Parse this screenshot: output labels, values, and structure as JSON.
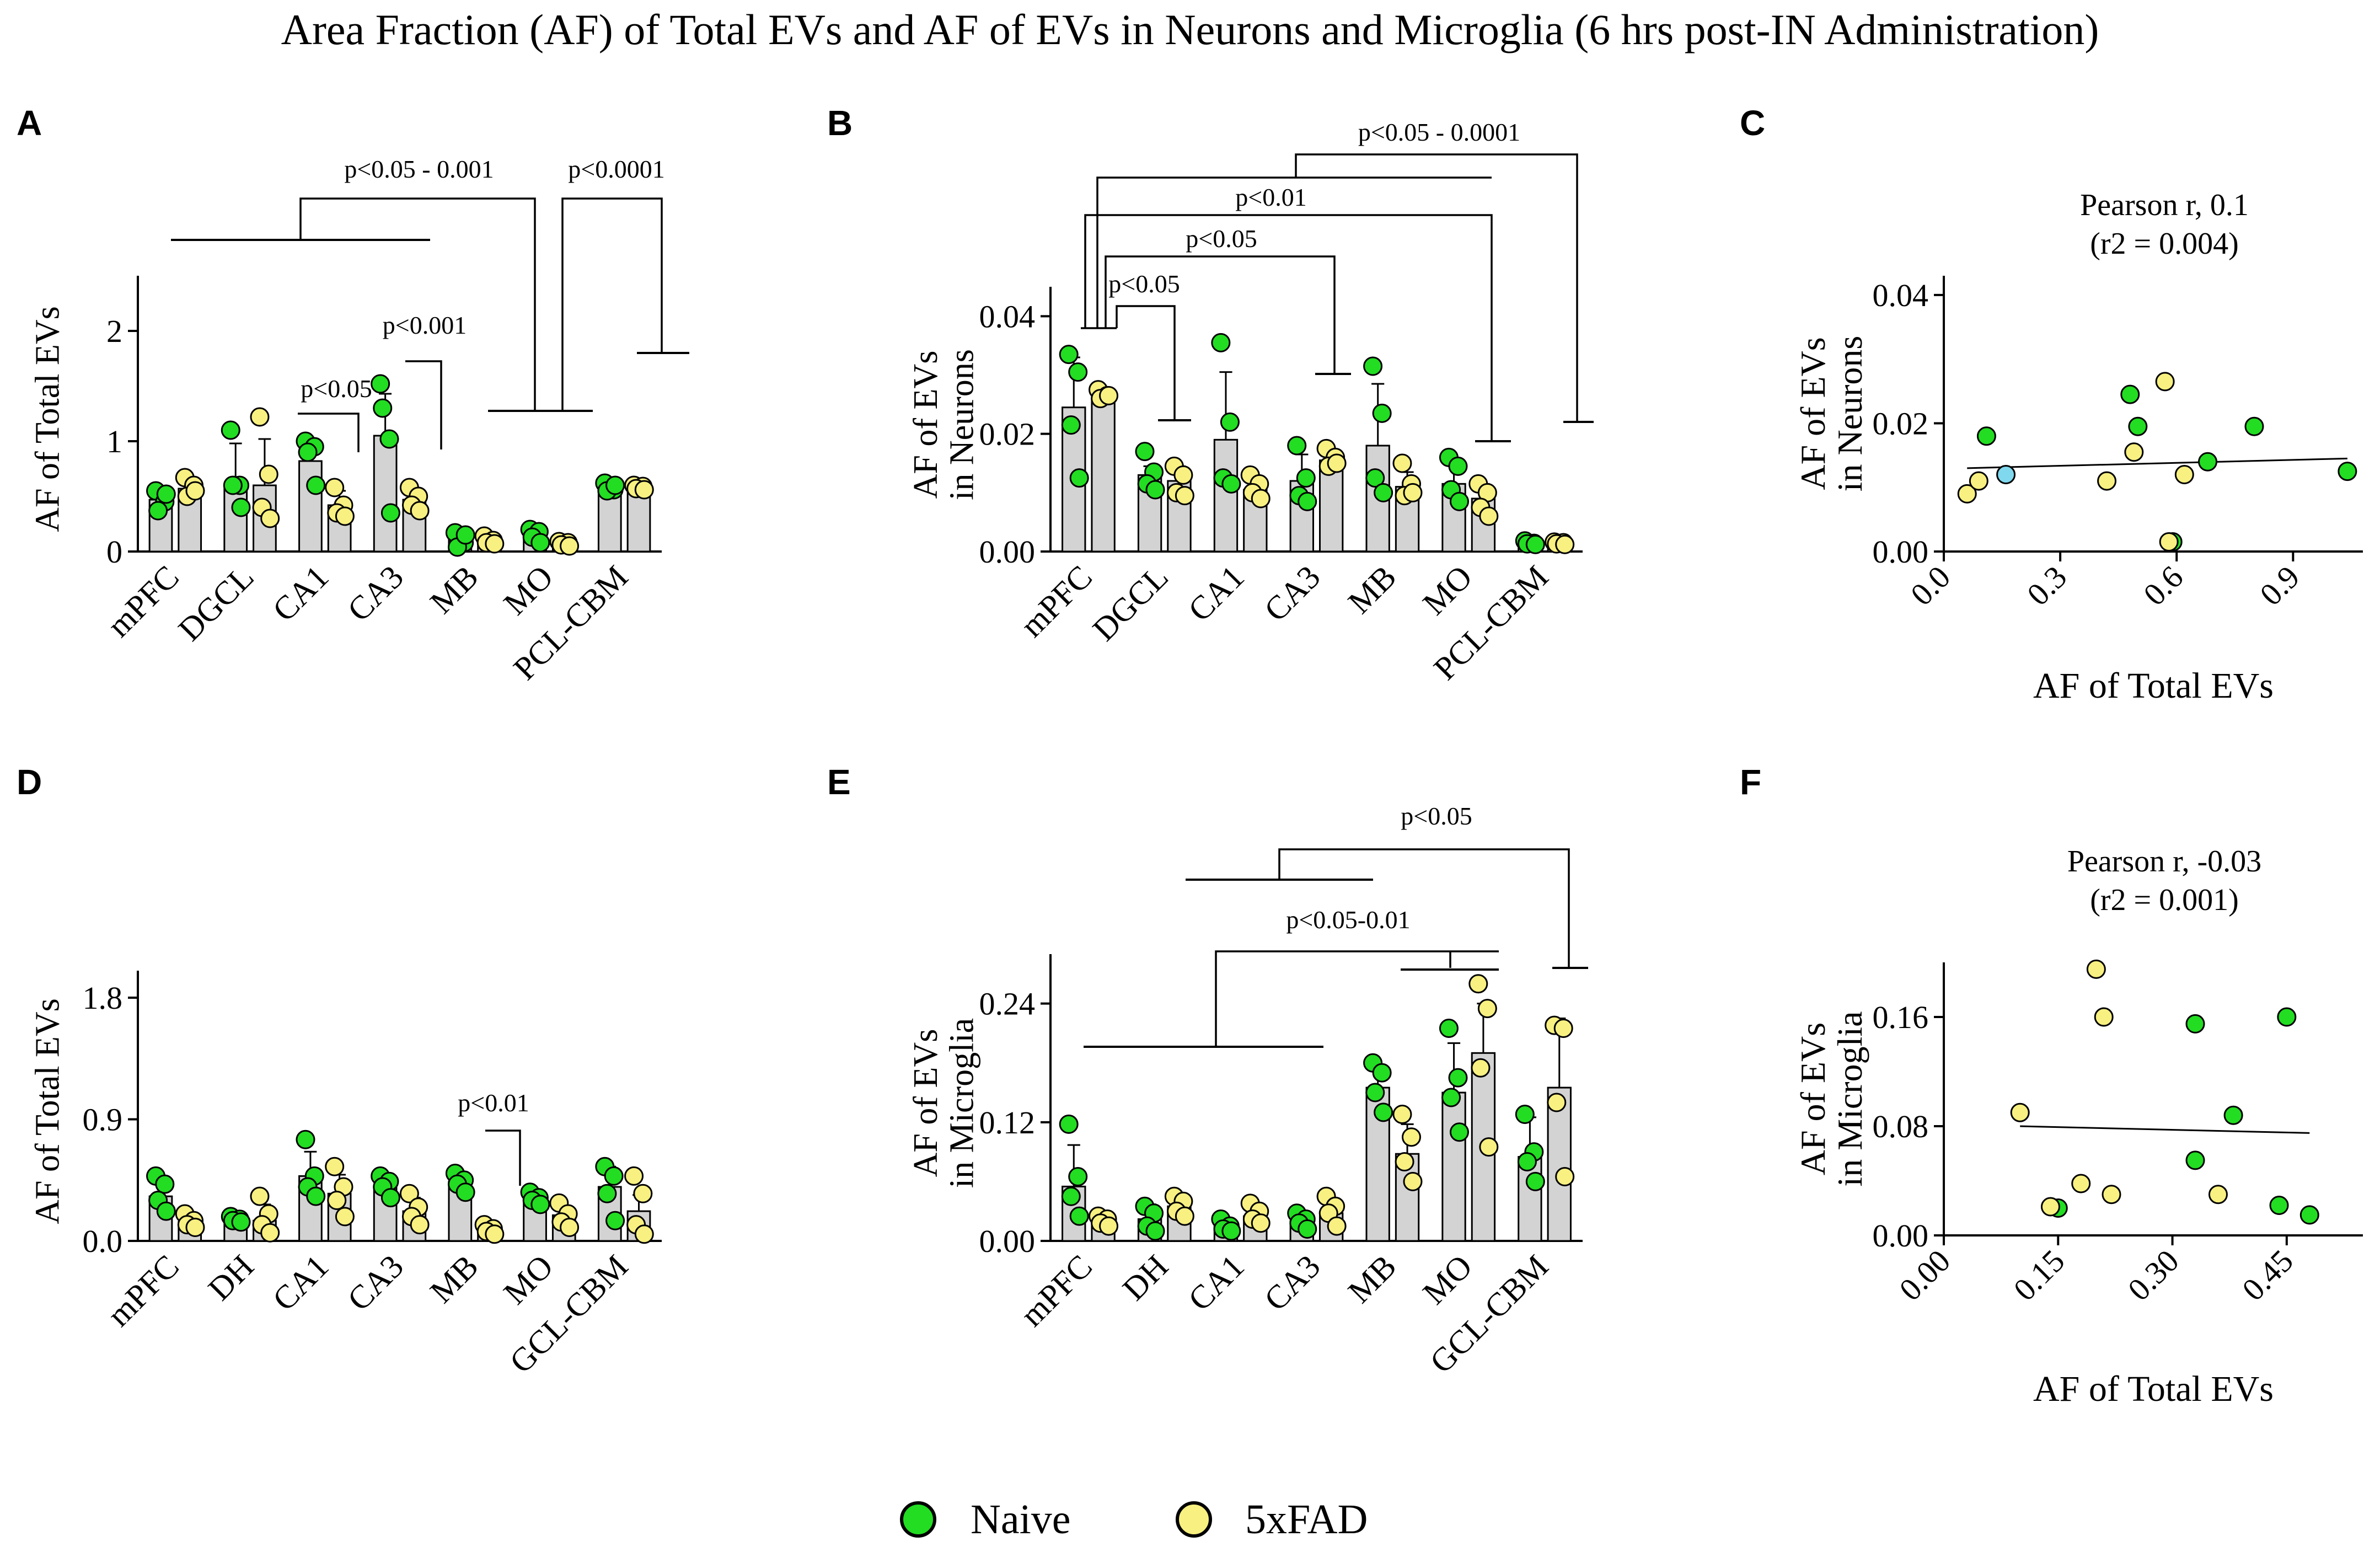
{
  "figure_title": "Area Fraction (AF) of Total EVs and AF of EVs in Neurons and Microglia (6 hrs post-IN Administration)",
  "colors": {
    "naive": "#22dd22",
    "fad": "#f8f080",
    "outlier": "#7fd8ee",
    "bar": "#d3d3d3",
    "ink": "#000000"
  },
  "legend": {
    "naive": "Naive",
    "fad": "5xFAD"
  },
  "chart_data": [
    {
      "panel": "A",
      "type": "bar",
      "title": "",
      "ylabel": "AF of Total EVs",
      "xlabel": "",
      "ylim": [
        0,
        2.5
      ],
      "yticks": [
        0,
        1,
        2
      ],
      "ytick_labels": [
        "0",
        "1",
        "2"
      ],
      "categories": [
        "mPFC",
        "DGCL",
        "CA1",
        "CA3",
        "MB",
        "MO",
        "PCL-CBM"
      ],
      "series": [
        {
          "name": "Naive",
          "values": [
            0.47,
            0.6,
            0.82,
            1.05,
            0.12,
            0.16,
            0.58
          ],
          "sd": [
            0.07,
            0.38,
            0.14,
            0.38,
            0.06,
            0.05,
            0.04
          ],
          "points": [
            [
              0.55,
              0.45,
              0.37,
              0.52
            ],
            [
              1.1,
              0.6,
              0.6,
              0.4
            ],
            [
              1.0,
              0.95,
              0.9,
              0.6
            ],
            [
              1.52,
              1.02,
              1.3,
              0.35
            ],
            [
              0.17,
              0.08,
              0.04,
              0.15
            ],
            [
              0.2,
              0.18,
              0.13,
              0.08
            ],
            [
              0.62,
              0.56,
              0.55,
              0.6
            ]
          ]
        },
        {
          "name": "5xFAD",
          "values": [
            0.57,
            0.6,
            0.42,
            0.47,
            0.1,
            0.08,
            0.58
          ],
          "sd": [
            0.08,
            0.42,
            0.13,
            0.1,
            0.03,
            0.02,
            0.02
          ],
          "points": [
            [
              0.67,
              0.6,
              0.5,
              0.55
            ],
            [
              1.22,
              0.7,
              0.4,
              0.3
            ],
            [
              0.58,
              0.42,
              0.35,
              0.32
            ],
            [
              0.58,
              0.5,
              0.42,
              0.37
            ],
            [
              0.14,
              0.1,
              0.08,
              0.07
            ],
            [
              0.09,
              0.08,
              0.06,
              0.05
            ],
            [
              0.6,
              0.59,
              0.57,
              0.56
            ]
          ]
        }
      ],
      "annotations": [
        {
          "label": "p<0.05",
          "type": "pair",
          "cats": [
            2,
            2
          ]
        },
        {
          "label": "p<0.001",
          "type": "pair",
          "cats": [
            3,
            3
          ]
        },
        {
          "label": "p<0.05 - 0.001",
          "type": "group-main",
          "text_at": 0.55
        },
        {
          "label": "p<0.0001",
          "type": "group-right"
        }
      ]
    },
    {
      "panel": "B",
      "type": "bar",
      "title": "",
      "ylabel": "AF of EVs\nin Neurons",
      "xlabel": "",
      "ylim": [
        0,
        0.045
      ],
      "yticks": [
        0,
        0.02,
        0.04
      ],
      "ytick_labels": [
        "0.00",
        "0.02",
        "0.04"
      ],
      "categories": [
        "mPFC",
        "DGCL",
        "CA1",
        "CA3",
        "MB",
        "MO",
        "PCL-CBM"
      ],
      "series": [
        {
          "name": "Naive",
          "values": [
            0.0245,
            0.013,
            0.019,
            0.012,
            0.018,
            0.0115,
            0.0015
          ],
          "sd": [
            0.0085,
            0.0015,
            0.0115,
            0.0045,
            0.0105,
            0.0035,
            0.0005
          ],
          "points": [
            [
              0.0335,
              0.0305,
              0.0215,
              0.0125
            ],
            [
              0.017,
              0.0135,
              0.0115,
              0.0105
            ],
            [
              0.0355,
              0.022,
              0.0125,
              0.0115
            ],
            [
              0.018,
              0.0125,
              0.0095,
              0.0085
            ],
            [
              0.0315,
              0.0235,
              0.0125,
              0.01
            ],
            [
              0.016,
              0.0145,
              0.0105,
              0.0085
            ],
            [
              0.0018,
              0.0014,
              0.0013,
              0.0012
            ]
          ]
        },
        {
          "name": "5xFAD",
          "values": [
            0.026,
            0.012,
            0.0105,
            0.0155,
            0.011,
            0.009,
            0.0014
          ],
          "sd": [
            0.0012,
            0.0025,
            0.0015,
            0.0015,
            0.0025,
            0.0025,
            0.0003
          ],
          "points": [
            [
              0.0275,
              0.0265,
              0.026,
              0.0265
            ],
            [
              0.0145,
              0.013,
              0.01,
              0.0095
            ],
            [
              0.013,
              0.0115,
              0.01,
              0.009
            ],
            [
              0.0175,
              0.016,
              0.0145,
              0.015
            ],
            [
              0.015,
              0.0115,
              0.0095,
              0.01
            ],
            [
              0.0115,
              0.01,
              0.0075,
              0.006
            ],
            [
              0.0016,
              0.0015,
              0.0013,
              0.0012
            ]
          ]
        }
      ],
      "annotations": [
        {
          "label": "p<0.05",
          "type": "mpfc-to",
          "cat": 1,
          "level": 1
        },
        {
          "label": "p<0.05",
          "type": "mpfc-to",
          "cat": 3,
          "level": 2
        },
        {
          "label": "p<0.01",
          "type": "mpfc-to",
          "cat": 5,
          "level": 3
        },
        {
          "label": "p<0.05 - 0.0001",
          "type": "mpfc-to",
          "cat": 6,
          "level": 4
        }
      ]
    },
    {
      "panel": "C",
      "type": "scatter",
      "title": "Pearson r, 0.1\n(r2 = 0.004)",
      "xlabel": "AF of Total EVs",
      "ylabel": "AF of EVs\nin Neurons",
      "xlim": [
        0,
        1.08
      ],
      "ylim": [
        0,
        0.043
      ],
      "xticks": [
        0,
        0.3,
        0.6,
        0.9
      ],
      "xtick_labels": [
        "0.0",
        "0.3",
        "0.6",
        "0.9"
      ],
      "yticks": [
        0,
        0.02,
        0.04
      ],
      "ytick_labels": [
        "0.00",
        "0.02",
        "0.04"
      ],
      "points": [
        {
          "x": 0.11,
          "y": 0.018,
          "group": "Naive"
        },
        {
          "x": 0.48,
          "y": 0.0245,
          "group": "Naive"
        },
        {
          "x": 0.5,
          "y": 0.0195,
          "group": "Naive"
        },
        {
          "x": 0.68,
          "y": 0.014,
          "group": "Naive"
        },
        {
          "x": 0.8,
          "y": 0.0195,
          "group": "Naive"
        },
        {
          "x": 1.04,
          "y": 0.0125,
          "group": "Naive"
        },
        {
          "x": 0.59,
          "y": 0.0015,
          "group": "Naive"
        },
        {
          "x": 0.16,
          "y": 0.012,
          "group": "outlier"
        },
        {
          "x": 0.06,
          "y": 0.009,
          "group": "5xFAD"
        },
        {
          "x": 0.09,
          "y": 0.011,
          "group": "5xFAD"
        },
        {
          "x": 0.42,
          "y": 0.011,
          "group": "5xFAD"
        },
        {
          "x": 0.49,
          "y": 0.0155,
          "group": "5xFAD"
        },
        {
          "x": 0.57,
          "y": 0.0265,
          "group": "5xFAD"
        },
        {
          "x": 0.58,
          "y": 0.0015,
          "group": "5xFAD"
        },
        {
          "x": 0.62,
          "y": 0.012,
          "group": "5xFAD"
        }
      ],
      "fit": [
        [
          0.06,
          0.013
        ],
        [
          1.04,
          0.0145
        ]
      ]
    },
    {
      "panel": "D",
      "type": "bar",
      "title": "",
      "ylabel": "AF of Total EVs",
      "xlabel": "",
      "ylim": [
        0,
        2.0
      ],
      "yticks": [
        0,
        0.9,
        1.8
      ],
      "ytick_labels": [
        "0.0",
        "0.9",
        "1.8"
      ],
      "categories": [
        "mPFC",
        "DH",
        "CA1",
        "CA3",
        "MB",
        "MO",
        "GCL-CBM"
      ],
      "series": [
        {
          "name": "Naive",
          "values": [
            0.33,
            0.16,
            0.48,
            0.4,
            0.44,
            0.31,
            0.4
          ],
          "sd": [
            0.1,
            0.02,
            0.18,
            0.05,
            0.06,
            0.04,
            0.15
          ],
          "points": [
            [
              0.48,
              0.42,
              0.3,
              0.22
            ],
            [
              0.18,
              0.16,
              0.15,
              0.14
            ],
            [
              0.75,
              0.48,
              0.4,
              0.33
            ],
            [
              0.48,
              0.44,
              0.4,
              0.32
            ],
            [
              0.5,
              0.45,
              0.42,
              0.36
            ],
            [
              0.36,
              0.32,
              0.3,
              0.27
            ],
            [
              0.55,
              0.48,
              0.35,
              0.15
            ]
          ]
        },
        {
          "name": "5xFAD",
          "values": [
            0.14,
            0.15,
            0.35,
            0.22,
            0.08,
            0.19,
            0.22
          ],
          "sd": [
            0.05,
            0.12,
            0.14,
            0.1,
            0.03,
            0.06,
            0.12
          ],
          "points": [
            [
              0.2,
              0.15,
              0.12,
              0.1
            ],
            [
              0.33,
              0.2,
              0.12,
              0.06
            ],
            [
              0.55,
              0.4,
              0.3,
              0.18
            ],
            [
              0.35,
              0.25,
              0.18,
              0.12
            ],
            [
              0.12,
              0.09,
              0.07,
              0.05
            ],
            [
              0.28,
              0.2,
              0.14,
              0.1
            ],
            [
              0.48,
              0.35,
              0.12,
              0.05
            ]
          ]
        }
      ],
      "annotations": [
        {
          "label": "p<0.01",
          "type": "pair",
          "cats": [
            4,
            4
          ]
        }
      ]
    },
    {
      "panel": "E",
      "type": "bar",
      "title": "",
      "ylabel": "AF of EVs\nin Microglia",
      "xlabel": "",
      "ylim": [
        0,
        0.29
      ],
      "yticks": [
        0,
        0.12,
        0.24
      ],
      "ytick_labels": [
        "0.00",
        "0.12",
        "0.24"
      ],
      "categories": [
        "mPFC",
        "DH",
        "CA1",
        "CA3",
        "MB",
        "MO",
        "GCL-CBM"
      ],
      "series": [
        {
          "name": "Naive",
          "values": [
            0.055,
            0.022,
            0.015,
            0.02,
            0.155,
            0.15,
            0.085
          ],
          "sd": [
            0.042,
            0.015,
            0.006,
            0.008,
            0.02,
            0.05,
            0.04
          ],
          "points": [
            [
              0.118,
              0.065,
              0.045,
              0.025
            ],
            [
              0.035,
              0.028,
              0.015,
              0.01
            ],
            [
              0.022,
              0.015,
              0.012,
              0.01
            ],
            [
              0.028,
              0.022,
              0.018,
              0.012
            ],
            [
              0.18,
              0.17,
              0.15,
              0.13
            ],
            [
              0.215,
              0.165,
              0.145,
              0.11
            ],
            [
              0.128,
              0.09,
              0.08,
              0.06
            ]
          ]
        },
        {
          "name": "5xFAD",
          "values": [
            0.02,
            0.035,
            0.025,
            0.028,
            0.088,
            0.19,
            0.155
          ],
          "sd": [
            0.006,
            0.01,
            0.01,
            0.014,
            0.03,
            0.05,
            0.07
          ],
          "points": [
            [
              0.025,
              0.022,
              0.018,
              0.015
            ],
            [
              0.045,
              0.04,
              0.03,
              0.025
            ],
            [
              0.038,
              0.03,
              0.022,
              0.018
            ],
            [
              0.045,
              0.035,
              0.028,
              0.015
            ],
            [
              0.128,
              0.105,
              0.08,
              0.06
            ],
            [
              0.26,
              0.235,
              0.175,
              0.095
            ],
            [
              0.218,
              0.215,
              0.14,
              0.065
            ]
          ]
        }
      ],
      "annotations": [
        {
          "label": "p<0.05-0.01",
          "type": "nested-left"
        },
        {
          "label": "p<0.05",
          "type": "nested-right"
        }
      ]
    },
    {
      "panel": "F",
      "type": "scatter",
      "title": "Pearson r, -0.03\n(r2 = 0.001)",
      "xlabel": "AF of Total EVs",
      "ylabel": "AF of EVs\nin Microglia",
      "xlim": [
        0,
        0.55
      ],
      "ylim": [
        0,
        0.2
      ],
      "xticks": [
        0,
        0.15,
        0.3,
        0.45
      ],
      "xtick_labels": [
        "0.00",
        "0.15",
        "0.30",
        "0.45"
      ],
      "yticks": [
        0,
        0.08,
        0.16
      ],
      "ytick_labels": [
        "0.00",
        "0.08",
        "0.16"
      ],
      "points": [
        {
          "x": 0.15,
          "y": 0.02,
          "group": "Naive"
        },
        {
          "x": 0.33,
          "y": 0.155,
          "group": "Naive"
        },
        {
          "x": 0.33,
          "y": 0.055,
          "group": "Naive"
        },
        {
          "x": 0.38,
          "y": 0.088,
          "group": "Naive"
        },
        {
          "x": 0.44,
          "y": 0.022,
          "group": "Naive"
        },
        {
          "x": 0.45,
          "y": 0.16,
          "group": "Naive"
        },
        {
          "x": 0.48,
          "y": 0.015,
          "group": "Naive"
        },
        {
          "x": 0.1,
          "y": 0.09,
          "group": "5xFAD"
        },
        {
          "x": 0.14,
          "y": 0.021,
          "group": "5xFAD"
        },
        {
          "x": 0.18,
          "y": 0.038,
          "group": "5xFAD"
        },
        {
          "x": 0.2,
          "y": 0.195,
          "group": "5xFAD"
        },
        {
          "x": 0.21,
          "y": 0.16,
          "group": "5xFAD"
        },
        {
          "x": 0.22,
          "y": 0.03,
          "group": "5xFAD"
        },
        {
          "x": 0.36,
          "y": 0.03,
          "group": "5xFAD"
        }
      ],
      "fit": [
        [
          0.1,
          0.08
        ],
        [
          0.48,
          0.075
        ]
      ]
    }
  ]
}
